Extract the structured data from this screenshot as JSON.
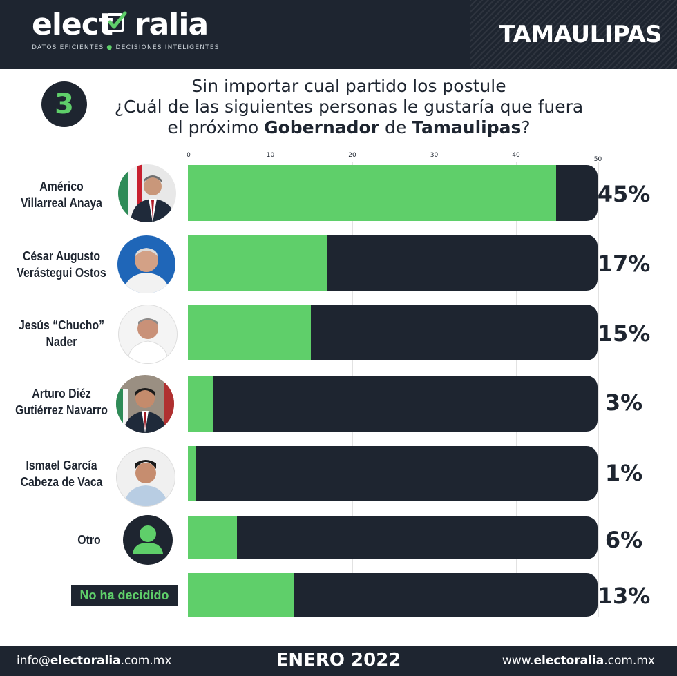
{
  "header": {
    "logo_part1": "elect",
    "logo_part2": "ralia",
    "tagline_left": "DATOS EFICIENTES",
    "tagline_right": "DECISIONES INTELIGENTES",
    "region": "TAMAULIPAS"
  },
  "question": {
    "number": "3",
    "line1": "Sin importar cual partido los postule",
    "line2": "¿Cuál de las siguientes personas le gustaría que fuera",
    "line3_a": "el próximo ",
    "line3_b": "Gobernador",
    "line3_c": " de ",
    "line3_d": "Tamaulipas",
    "line3_e": "?"
  },
  "chart_data": {
    "type": "bar",
    "orientation": "horizontal",
    "categories": [
      "Américo Villarreal Anaya",
      "César Augusto Verástegui Ostos",
      "Jesús “Chucho” Nader",
      "Arturo Diéz Gutiérrez Navarro",
      "Ismael García Cabeza de Vaca",
      "Otro",
      "No ha decidido"
    ],
    "values": [
      45,
      17,
      15,
      3,
      1,
      6,
      13
    ],
    "value_labels": [
      "45%",
      "17%",
      "15%",
      "3%",
      "1%",
      "6%",
      "13%"
    ],
    "xlim": [
      0,
      50
    ],
    "x_ticks": [
      0,
      10,
      20,
      30,
      40,
      50
    ],
    "x_tick_labels": [
      "0",
      "10",
      "20",
      "30",
      "40",
      "50"
    ],
    "colors": {
      "fill": "#5fcf6a",
      "track": "#1e2530"
    },
    "row_labels": [
      [
        "Américo",
        "Villarreal Anaya"
      ],
      [
        "César Augusto",
        "Verástegui Ostos"
      ],
      [
        "Jesús “Chucho”",
        "Nader"
      ],
      [
        "Arturo Diéz",
        "Gutiérrez Navarro"
      ],
      [
        "Ismael García",
        "Cabeza de Vaca"
      ],
      [
        "Otro"
      ],
      [
        "No ha decidido"
      ]
    ]
  },
  "footer": {
    "email_a": "info@",
    "email_b": "electoralia",
    "email_c": ".com.mx",
    "date": "ENERO 2022",
    "web_a": "www.",
    "web_b": "electoralia",
    "web_c": ".com.mx"
  },
  "colors": {
    "dark": "#1e2530",
    "green": "#5fcf6a"
  }
}
